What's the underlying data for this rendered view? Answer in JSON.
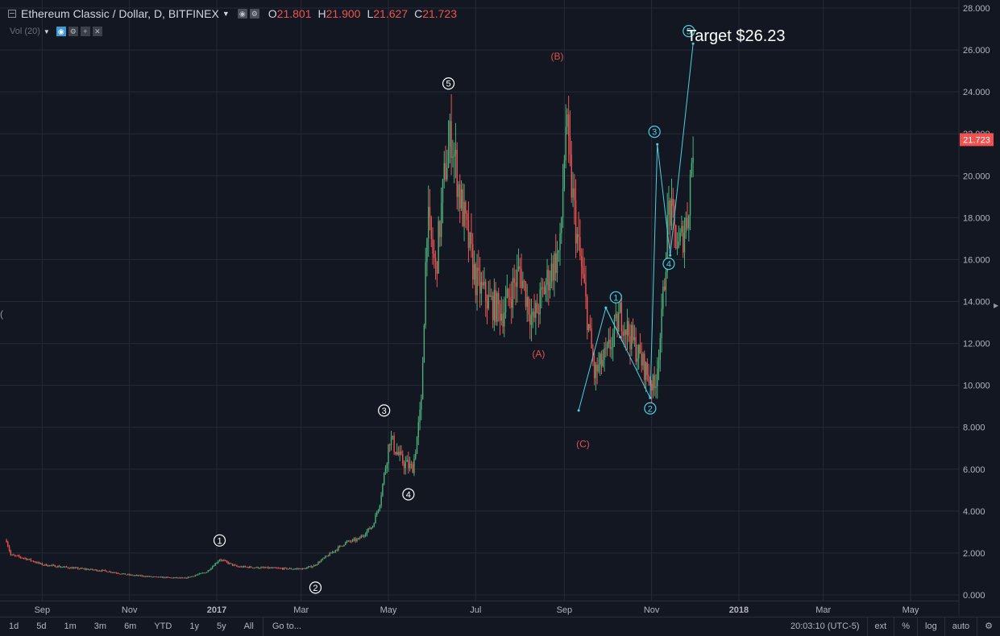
{
  "header": {
    "symbol_title": "Ethereum Classic / Dollar, D, BITFINEX",
    "ohlc": [
      {
        "k": "O",
        "v": "21.801"
      },
      {
        "k": "H",
        "v": "21.900"
      },
      {
        "k": "L",
        "v": "21.627"
      },
      {
        "k": "C",
        "v": "21.723"
      }
    ],
    "volume_label": "Vol (20)"
  },
  "icons": {
    "collapse": "collapse-icon",
    "settings": "gear-icon",
    "eye": "eye-icon",
    "add": "plus-icon",
    "remove": "close-icon"
  },
  "colors": {
    "background": "#131722",
    "up": "#4caf7a",
    "down": "#ef5350",
    "grid": "#262a35",
    "wave_white": "#ffffff",
    "wave_cyan": "#4dd0e1",
    "wave_red": "#e05050",
    "price_badge": "#ef5350"
  },
  "chart_data": {
    "type": "candlestick",
    "title": "Ethereum Classic / Dollar, D, BITFINEX",
    "ylim": [
      0,
      29
    ],
    "y_ticks": [
      "0.000",
      "2.000",
      "4.000",
      "6.000",
      "8.000",
      "10.000",
      "12.000",
      "14.000",
      "16.000",
      "18.000",
      "20.000",
      "22.000",
      "24.000",
      "26.000",
      "28.000"
    ],
    "x_range": [
      "2016-08-07",
      "2018-06-01"
    ],
    "x_ticks": [
      {
        "date": "2016-09-01",
        "label": "Sep"
      },
      {
        "date": "2016-11-01",
        "label": "Nov"
      },
      {
        "date": "2017-01-01",
        "label": "2017"
      },
      {
        "date": "2017-03-01",
        "label": "Mar"
      },
      {
        "date": "2017-05-01",
        "label": "May"
      },
      {
        "date": "2017-07-01",
        "label": "Jul"
      },
      {
        "date": "2017-09-01",
        "label": "Sep"
      },
      {
        "date": "2017-11-01",
        "label": "Nov"
      },
      {
        "date": "2018-01-01",
        "label": "2018"
      },
      {
        "date": "2018-03-01",
        "label": "Mar"
      },
      {
        "date": "2018-05-01",
        "label": "May"
      }
    ],
    "last_price": "21.723",
    "last_value": 21.723,
    "grid": true,
    "price_path": [
      [
        "2016-08-07",
        2.6
      ],
      [
        "2016-08-10",
        1.9
      ],
      [
        "2016-08-20",
        1.75
      ],
      [
        "2016-09-01",
        1.45
      ],
      [
        "2016-09-20",
        1.3
      ],
      [
        "2016-10-15",
        1.15
      ],
      [
        "2016-11-01",
        0.95
      ],
      [
        "2016-11-20",
        0.85
      ],
      [
        "2016-12-10",
        0.8
      ],
      [
        "2016-12-25",
        1.1
      ],
      [
        "2017-01-03",
        1.7
      ],
      [
        "2017-01-15",
        1.35
      ],
      [
        "2017-02-01",
        1.3
      ],
      [
        "2017-02-20",
        1.25
      ],
      [
        "2017-03-03",
        1.25
      ],
      [
        "2017-03-10",
        1.4
      ],
      [
        "2017-03-20",
        1.9
      ],
      [
        "2017-04-01",
        2.5
      ],
      [
        "2017-04-10",
        2.65
      ],
      [
        "2017-04-20",
        3.3
      ],
      [
        "2017-04-25",
        4.4
      ],
      [
        "2017-05-02",
        7.5
      ],
      [
        "2017-05-10",
        6.4
      ],
      [
        "2017-05-18",
        6.0
      ],
      [
        "2017-05-24",
        9.0
      ],
      [
        "2017-05-28",
        18.0
      ],
      [
        "2017-06-03",
        15.5
      ],
      [
        "2017-06-10",
        20.5
      ],
      [
        "2017-06-14",
        22.0
      ],
      [
        "2017-06-20",
        19.0
      ],
      [
        "2017-07-01",
        15.0
      ],
      [
        "2017-07-10",
        14.0
      ],
      [
        "2017-07-20",
        13.5
      ],
      [
        "2017-08-01",
        15.5
      ],
      [
        "2017-08-10",
        13.0
      ],
      [
        "2017-08-20",
        15.0
      ],
      [
        "2017-08-29",
        16.5
      ],
      [
        "2017-09-02",
        22.5
      ],
      [
        "2017-09-06",
        19.5
      ],
      [
        "2017-09-10",
        17.0
      ],
      [
        "2017-09-15",
        14.5
      ],
      [
        "2017-09-22",
        10.5
      ],
      [
        "2017-10-01",
        11.5
      ],
      [
        "2017-10-10",
        13.4
      ],
      [
        "2017-10-18",
        12.2
      ],
      [
        "2017-10-26",
        11.0
      ],
      [
        "2017-11-03",
        9.8
      ],
      [
        "2017-11-08",
        13.0
      ],
      [
        "2017-11-13",
        18.5
      ],
      [
        "2017-11-20",
        16.5
      ],
      [
        "2017-11-26",
        18.0
      ],
      [
        "2017-11-30",
        21.7
      ]
    ],
    "annotations": [
      {
        "label": "1",
        "style": "white",
        "x": "2017-01-03",
        "y": 2.6
      },
      {
        "label": "2",
        "style": "white",
        "x": "2017-03-11",
        "y": 0.35
      },
      {
        "label": "3",
        "style": "white",
        "x": "2017-04-28",
        "y": 8.8
      },
      {
        "label": "4",
        "style": "white",
        "x": "2017-05-15",
        "y": 4.8
      },
      {
        "label": "5",
        "style": "white",
        "x": "2017-06-12",
        "y": 24.4
      },
      {
        "label": "(A)",
        "style": "red-text",
        "x": "2017-08-14",
        "y": 11.5
      },
      {
        "label": "(B)",
        "style": "red-text",
        "x": "2017-08-27",
        "y": 25.7
      },
      {
        "label": "(C)",
        "style": "red-text",
        "x": "2017-09-14",
        "y": 7.2
      },
      {
        "label": "1",
        "style": "cyan",
        "x": "2017-10-07",
        "y": 14.2
      },
      {
        "label": "2",
        "style": "cyan",
        "x": "2017-10-31",
        "y": 8.9
      },
      {
        "label": "3",
        "style": "cyan",
        "x": "2017-11-03",
        "y": 22.1
      },
      {
        "label": "4",
        "style": "cyan",
        "x": "2017-11-13",
        "y": 15.8
      },
      {
        "label": "5",
        "style": "cyan",
        "x": "2017-11-27",
        "y": 26.9
      },
      {
        "label": "Target $26.23",
        "style": "big-white",
        "x": "2017-12-30",
        "y": 26.7
      }
    ],
    "wave_lines": [
      {
        "color": "cyan",
        "points": [
          [
            "2017-09-11",
            8.8
          ],
          [
            "2017-09-30",
            13.7
          ],
          [
            "2017-10-31",
            9.4
          ],
          [
            "2017-11-05",
            21.5
          ],
          [
            "2017-11-14",
            16.2
          ],
          [
            "2017-11-30",
            26.3
          ]
        ]
      },
      {
        "color": "cyan",
        "points": [
          [
            "2017-09-30",
            13.7
          ],
          [
            "2017-10-10",
            12.3
          ]
        ]
      }
    ]
  },
  "bottom_bar": {
    "timeframes": [
      "1d",
      "5d",
      "1m",
      "3m",
      "6m",
      "YTD",
      "1y",
      "5y",
      "All"
    ],
    "goto": "Go to...",
    "time": "20:03:10 (UTC-5)",
    "ext": "ext",
    "percent": "%",
    "log": "log",
    "auto": "auto"
  }
}
